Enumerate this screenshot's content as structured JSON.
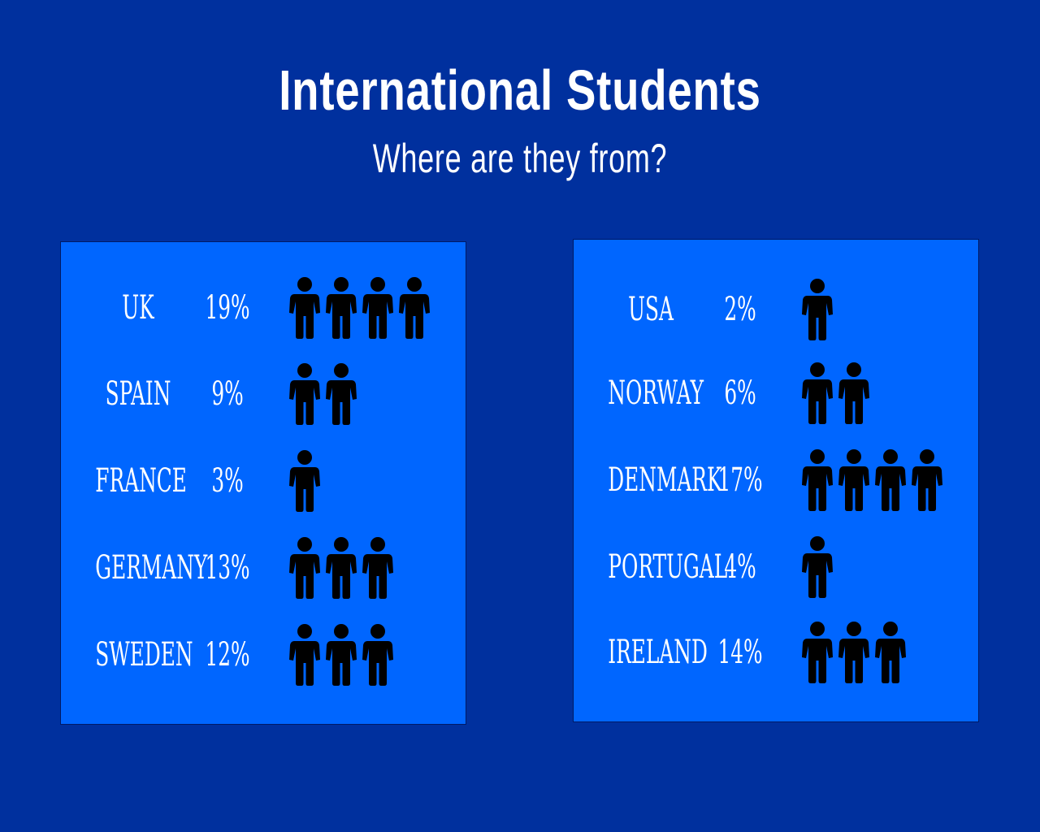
{
  "header": {
    "title": "International Students",
    "subtitle": "Where are they from?"
  },
  "colors": {
    "background": "#00309e",
    "panel": "#0066ff",
    "icon": "#000000",
    "text": "#ffffff"
  },
  "icon_name": "person-icon",
  "chart_data": [
    {
      "type": "table",
      "panel": "left",
      "columns": [
        "country",
        "percent",
        "icon_count"
      ],
      "rows": [
        {
          "country": "UK",
          "percent_label": "19%",
          "percent": 19,
          "icons": 4
        },
        {
          "country": "SPAIN",
          "percent_label": "9%",
          "percent": 9,
          "icons": 2
        },
        {
          "country": "FRANCE",
          "percent_label": "3%",
          "percent": 3,
          "icons": 1
        },
        {
          "country": "GERMANY",
          "percent_label": "13%",
          "percent": 13,
          "icons": 3
        },
        {
          "country": "SWEDEN",
          "percent_label": "12%",
          "percent": 12,
          "icons": 3
        }
      ]
    },
    {
      "type": "table",
      "panel": "right",
      "columns": [
        "country",
        "percent",
        "icon_count"
      ],
      "rows": [
        {
          "country": "USA",
          "percent_label": "2%",
          "percent": 2,
          "icons": 1
        },
        {
          "country": "NORWAY",
          "percent_label": "6%",
          "percent": 6,
          "icons": 2
        },
        {
          "country": "DENMARK",
          "percent_label": "17%",
          "percent": 17,
          "icons": 4
        },
        {
          "country": "PORTUGAL",
          "percent_label": "4%",
          "percent": 4,
          "icons": 1
        },
        {
          "country": "IRELAND",
          "percent_label": "14%",
          "percent": 14,
          "icons": 3
        }
      ]
    }
  ]
}
